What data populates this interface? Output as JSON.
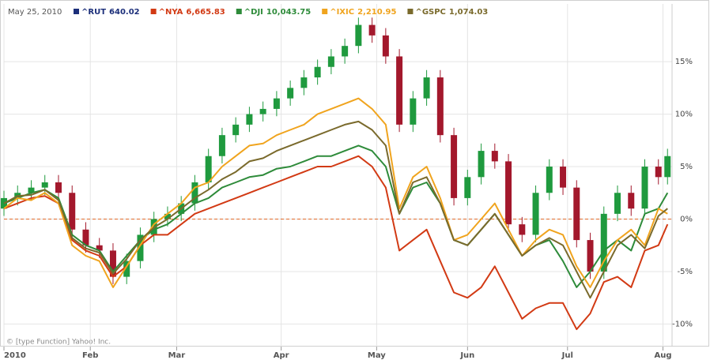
{
  "chart_data": {
    "type": "stock",
    "legend_date": "May 25, 2010",
    "footer": "© [type Function] Yahoo! Inc.",
    "x": [
      0,
      3,
      6,
      9,
      12,
      15,
      18,
      21,
      24,
      27,
      30,
      33,
      36,
      39,
      42,
      45,
      48,
      51,
      54,
      57,
      60,
      63,
      66,
      69,
      72,
      75,
      78,
      81,
      84,
      87,
      90,
      93,
      96,
      99,
      102,
      105,
      108,
      111,
      114,
      117,
      120,
      123,
      126,
      129,
      132,
      135,
      138,
      141,
      144,
      146
    ],
    "xlim": [
      0,
      147
    ],
    "xticks": [
      {
        "value": 0,
        "label": "2010"
      },
      {
        "value": 19,
        "label": "Feb"
      },
      {
        "value": 38,
        "label": "Mar"
      },
      {
        "value": 61,
        "label": "Apr"
      },
      {
        "value": 82,
        "label": "May"
      },
      {
        "value": 102,
        "label": "Jun"
      },
      {
        "value": 124,
        "label": "Jul"
      },
      {
        "value": 145,
        "label": "Aug"
      }
    ],
    "ylim": [
      -12,
      20.5
    ],
    "yticks": [
      {
        "value": -10,
        "label": "-10%"
      },
      {
        "value": -5,
        "label": "-5%"
      },
      {
        "value": 0,
        "label": "0%"
      },
      {
        "value": 5,
        "label": "5%"
      },
      {
        "value": 10,
        "label": "10%"
      },
      {
        "value": 15,
        "label": "15%"
      }
    ],
    "grid": true,
    "baseline": 0,
    "baseline_color": "#e06a2a",
    "series": [
      {
        "name": "^RUT",
        "quote": "640.02",
        "type": "candlestick",
        "color": "#1c2f7a",
        "up_color": "#1f9a3e",
        "down_color": "#a3182c",
        "open": [
          1.0,
          2.0,
          2.5,
          3.0,
          3.5,
          2.5,
          -1.0,
          -2.5,
          -3.0,
          -5.5,
          -4.0,
          -1.5,
          0.0,
          0.5,
          1.5,
          3.5,
          6.0,
          8.0,
          9.0,
          10.0,
          10.5,
          11.5,
          12.5,
          13.5,
          14.5,
          15.5,
          16.5,
          18.5,
          17.5,
          15.5,
          9.0,
          11.5,
          13.5,
          8.0,
          2.0,
          4.0,
          6.5,
          5.5,
          -0.5,
          -1.5,
          2.5,
          5.0,
          3.0,
          -2.0,
          -5.0,
          0.5,
          2.5,
          1.0,
          5.0,
          4.0
        ],
        "high": [
          2.7,
          3.2,
          3.7,
          4.2,
          4.2,
          3.2,
          -0.3,
          -1.8,
          -2.3,
          -3.3,
          -0.8,
          0.7,
          1.2,
          2.2,
          4.2,
          6.7,
          8.7,
          9.7,
          10.7,
          11.2,
          12.2,
          13.2,
          14.2,
          15.2,
          16.2,
          17.2,
          19.2,
          19.2,
          18.2,
          16.2,
          12.2,
          14.2,
          14.2,
          8.7,
          4.7,
          7.2,
          7.2,
          6.2,
          0.2,
          3.2,
          5.7,
          5.7,
          3.7,
          -1.3,
          1.2,
          3.2,
          3.2,
          5.7,
          5.7,
          6.7
        ],
        "low": [
          0.3,
          1.3,
          1.8,
          2.3,
          1.8,
          -1.7,
          -3.2,
          -3.7,
          -6.2,
          -6.2,
          -4.7,
          -2.2,
          -0.7,
          -0.2,
          0.8,
          2.8,
          5.3,
          7.3,
          8.3,
          9.3,
          9.8,
          10.8,
          11.8,
          12.8,
          13.8,
          14.8,
          15.8,
          16.8,
          14.8,
          8.3,
          8.3,
          10.8,
          7.3,
          1.3,
          1.3,
          3.3,
          4.8,
          -1.2,
          -2.2,
          -2.2,
          1.8,
          2.3,
          -2.7,
          -5.7,
          -5.7,
          -0.2,
          0.3,
          0.3,
          3.3,
          3.3
        ],
        "close": [
          2.0,
          2.5,
          3.0,
          3.5,
          2.5,
          -1.0,
          -2.5,
          -3.0,
          -5.5,
          -4.0,
          -1.5,
          0.0,
          0.5,
          1.5,
          3.5,
          6.0,
          8.0,
          9.0,
          10.0,
          10.5,
          11.5,
          12.5,
          13.5,
          14.5,
          15.5,
          16.5,
          18.5,
          17.5,
          15.5,
          9.0,
          11.5,
          13.5,
          8.0,
          2.0,
          4.0,
          6.5,
          5.5,
          -0.5,
          -1.5,
          2.5,
          5.0,
          3.0,
          -2.0,
          -5.0,
          0.5,
          2.5,
          1.0,
          5.0,
          4.0,
          6.0
        ]
      },
      {
        "name": "^NYA",
        "quote": "6,665.83",
        "type": "line",
        "color": "#d23a14",
        "values": [
          1.0,
          1.5,
          2.0,
          2.2,
          1.5,
          -2.0,
          -3.0,
          -3.5,
          -5.5,
          -4.5,
          -2.5,
          -1.5,
          -1.5,
          -0.5,
          0.5,
          1.0,
          1.5,
          2.0,
          2.5,
          3.0,
          3.5,
          4.0,
          4.5,
          5.0,
          5.0,
          5.5,
          6.0,
          5.0,
          3.0,
          -3.0,
          -2.0,
          -1.0,
          -4.0,
          -7.0,
          -7.5,
          -6.5,
          -4.5,
          -7.0,
          -9.5,
          -8.5,
          -8.0,
          -8.0,
          -10.5,
          -9.0,
          -6.0,
          -5.5,
          -6.5,
          -3.0,
          -2.5,
          -0.5
        ]
      },
      {
        "name": "^DJI",
        "quote": "10,043.75",
        "type": "line",
        "color": "#2e8b3a",
        "values": [
          1.5,
          2.0,
          2.5,
          2.8,
          2.0,
          -1.5,
          -2.5,
          -3.0,
          -5.0,
          -3.5,
          -2.0,
          -1.0,
          -0.5,
          0.5,
          1.5,
          2.0,
          3.0,
          3.5,
          4.0,
          4.2,
          4.8,
          5.0,
          5.5,
          6.0,
          6.0,
          6.5,
          7.0,
          6.5,
          5.0,
          0.5,
          3.0,
          3.5,
          1.5,
          -2.0,
          -2.5,
          -1.0,
          0.5,
          -1.5,
          -3.5,
          -2.5,
          -2.0,
          -4.0,
          -6.5,
          -5.0,
          -3.0,
          -2.0,
          -3.0,
          0.5,
          1.0,
          2.5
        ]
      },
      {
        "name": "^IXIC",
        "quote": "2,210.95",
        "type": "line",
        "color": "#f0a41e",
        "values": [
          1.0,
          2.0,
          1.8,
          2.5,
          1.5,
          -2.5,
          -3.5,
          -4.0,
          -6.5,
          -4.5,
          -2.5,
          -0.5,
          0.5,
          1.5,
          3.0,
          3.5,
          5.0,
          6.0,
          7.0,
          7.2,
          8.0,
          8.5,
          9.0,
          10.0,
          10.5,
          11.0,
          11.5,
          10.5,
          9.0,
          1.0,
          4.0,
          5.0,
          2.0,
          -2.0,
          -1.5,
          0.0,
          1.5,
          -1.0,
          -3.5,
          -2.0,
          -1.0,
          -1.5,
          -4.5,
          -6.5,
          -4.0,
          -2.0,
          -1.0,
          -2.5,
          1.0,
          0.5
        ]
      },
      {
        "name": "^GSPC",
        "quote": "1,074.03",
        "type": "line",
        "color": "#7a6a2c",
        "values": [
          1.5,
          2.2,
          2.3,
          2.8,
          1.8,
          -1.8,
          -2.8,
          -3.2,
          -5.2,
          -3.8,
          -2.0,
          -0.8,
          0.0,
          1.0,
          2.0,
          2.8,
          3.8,
          4.5,
          5.5,
          5.8,
          6.5,
          7.0,
          7.5,
          8.0,
          8.5,
          9.0,
          9.3,
          8.5,
          7.0,
          0.5,
          3.5,
          4.0,
          1.5,
          -2.0,
          -2.5,
          -1.0,
          0.5,
          -1.5,
          -3.5,
          -2.5,
          -1.8,
          -2.5,
          -5.0,
          -7.5,
          -5.0,
          -2.5,
          -1.5,
          -2.8,
          0.3,
          1.0
        ]
      }
    ]
  }
}
